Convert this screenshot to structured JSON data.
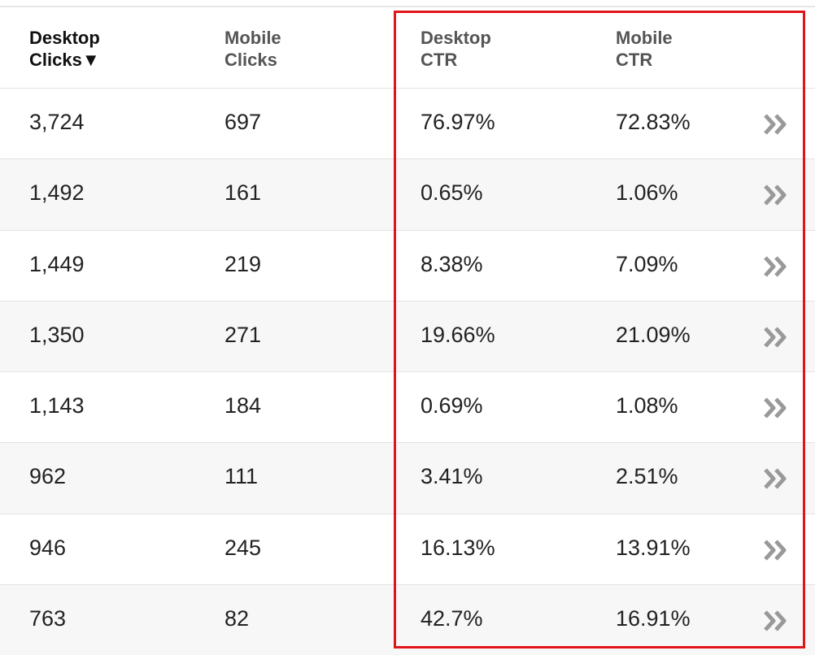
{
  "table": {
    "header": [
      [
        "Desktop",
        "Clicks▼"
      ],
      [
        "Mobile",
        "Clicks"
      ],
      [
        "Desktop",
        "CTR"
      ],
      [
        "Mobile",
        "CTR"
      ]
    ],
    "rows": [
      [
        "3,724",
        "697",
        "76.97%",
        "72.83%"
      ],
      [
        "1,492",
        "161",
        "0.65%",
        "1.06%"
      ],
      [
        "1,449",
        "219",
        "8.38%",
        "7.09%"
      ],
      [
        "1,350",
        "271",
        "19.66%",
        "21.09%"
      ],
      [
        "1,143",
        "184",
        "0.69%",
        "1.08%"
      ],
      [
        "962",
        "111",
        "3.41%",
        "2.51%"
      ],
      [
        "946",
        "245",
        "16.13%",
        "13.91%"
      ],
      [
        "763",
        "82",
        "42.7%",
        "16.91%"
      ]
    ]
  }
}
